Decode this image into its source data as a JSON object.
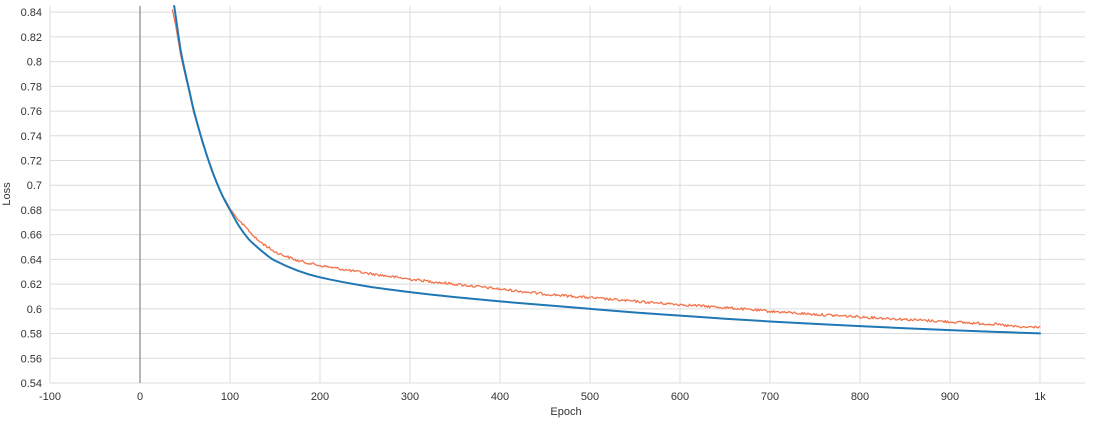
{
  "chart_data": {
    "type": "line",
    "xlabel": "Epoch",
    "ylabel": "Loss",
    "xlim": [
      -100,
      1050
    ],
    "ylim": [
      0.54,
      0.845
    ],
    "x_ticks": [
      -100,
      0,
      100,
      200,
      300,
      400,
      500,
      600,
      700,
      800,
      900,
      1000
    ],
    "x_tick_labels": [
      "-100",
      "0",
      "100",
      "200",
      "300",
      "400",
      "500",
      "600",
      "700",
      "800",
      "900",
      "1k"
    ],
    "y_ticks": [
      0.54,
      0.56,
      0.58,
      0.6,
      0.62,
      0.64,
      0.66,
      0.68,
      0.7,
      0.72,
      0.74,
      0.76,
      0.78,
      0.8,
      0.82,
      0.84
    ],
    "y_tick_labels": [
      "0.54",
      "0.56",
      "0.58",
      "0.6",
      "0.62",
      "0.64",
      "0.66",
      "0.68",
      "0.7",
      "0.72",
      "0.74",
      "0.76",
      "0.78",
      "0.8",
      "0.82",
      "0.84"
    ],
    "grid": true,
    "series": [
      {
        "color": "#1f77b4",
        "x": [
          38,
          40,
          45,
          50,
          55,
          60,
          70,
          80,
          90,
          100,
          110,
          120,
          130,
          140,
          150,
          175,
          200,
          250,
          300,
          350,
          400,
          450,
          500,
          550,
          600,
          650,
          700,
          750,
          800,
          850,
          900,
          950,
          1000
        ],
        "y": [
          0.845,
          0.835,
          0.81,
          0.792,
          0.776,
          0.76,
          0.734,
          0.712,
          0.694,
          0.68,
          0.667,
          0.657,
          0.65,
          0.644,
          0.639,
          0.631,
          0.6255,
          0.6185,
          0.6135,
          0.6095,
          0.606,
          0.603,
          0.6,
          0.597,
          0.5945,
          0.592,
          0.5898,
          0.5878,
          0.586,
          0.5843,
          0.5828,
          0.5814,
          0.5801
        ]
      },
      {
        "color": "#f4734a",
        "x": [
          36,
          40,
          45,
          50,
          55,
          60,
          70,
          80,
          90,
          100,
          110,
          120,
          130,
          140,
          150,
          175,
          200,
          250,
          300,
          350,
          400,
          450,
          500,
          550,
          600,
          650,
          700,
          750,
          800,
          850,
          900,
          950,
          980,
          1000
        ],
        "y": [
          0.842,
          0.828,
          0.806,
          0.79,
          0.774,
          0.758,
          0.733,
          0.711,
          0.694,
          0.681,
          0.671,
          0.664,
          0.656,
          0.651,
          0.646,
          0.639,
          0.635,
          0.629,
          0.624,
          0.62,
          0.616,
          0.612,
          0.609,
          0.606,
          0.6035,
          0.601,
          0.598,
          0.5955,
          0.5935,
          0.5915,
          0.5895,
          0.5875,
          0.585,
          0.5855
        ]
      }
    ]
  }
}
